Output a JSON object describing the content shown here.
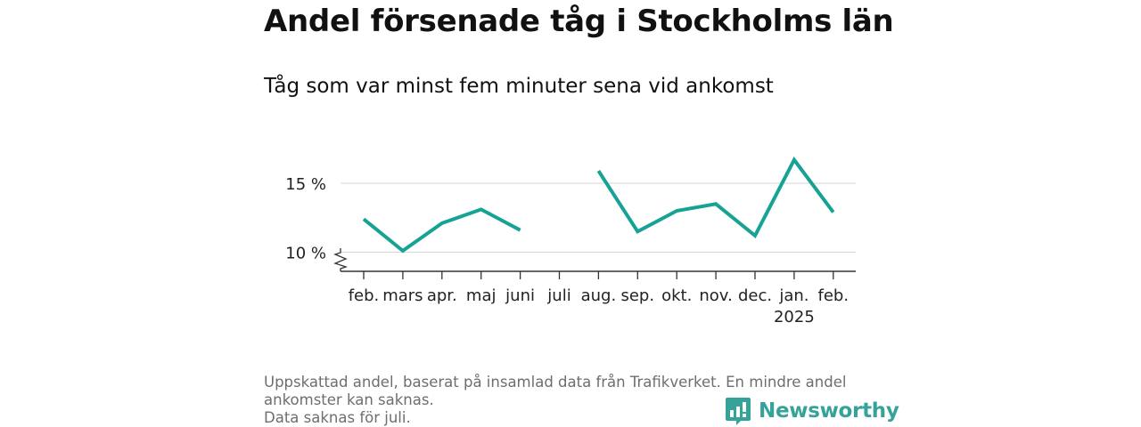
{
  "header": {
    "title": "Andel försenade tåg i Stockholms län",
    "subtitle": "Tåg som var minst fem minuter sena vid ankomst"
  },
  "chart_data": {
    "type": "line",
    "categories": [
      "feb.",
      "mars",
      "apr.",
      "maj",
      "juni",
      "juli",
      "aug.",
      "sep.",
      "okt.",
      "nov.",
      "dec.",
      "jan.",
      "feb."
    ],
    "category_sublabels": [
      "",
      "",
      "",
      "",
      "",
      "",
      "",
      "",
      "",
      "",
      "",
      "2025",
      ""
    ],
    "series": [
      {
        "values": [
          12.4,
          10.1,
          12.1,
          13.1,
          11.6,
          null,
          15.9,
          11.5,
          13.0,
          13.5,
          11.2,
          16.7,
          12.9
        ]
      }
    ],
    "ytick_values": [
      10,
      15
    ],
    "ytick_labels": [
      "10 %",
      "15 %"
    ],
    "ylim": [
      8.6,
      17.5
    ],
    "axis_break": true,
    "grid": true,
    "line_color": "#16a395"
  },
  "footer": {
    "note_line1": "Uppskattad andel, baserat på insamlad data från Trafikverket. En mindre andel",
    "note_line2": "ankomster kan saknas.",
    "note_line3": "Data saknas för juli.",
    "brand": "Newsworthy",
    "brand_icon": "bar-chart-speech-bubble-icon",
    "brand_color": "#36a39a"
  }
}
